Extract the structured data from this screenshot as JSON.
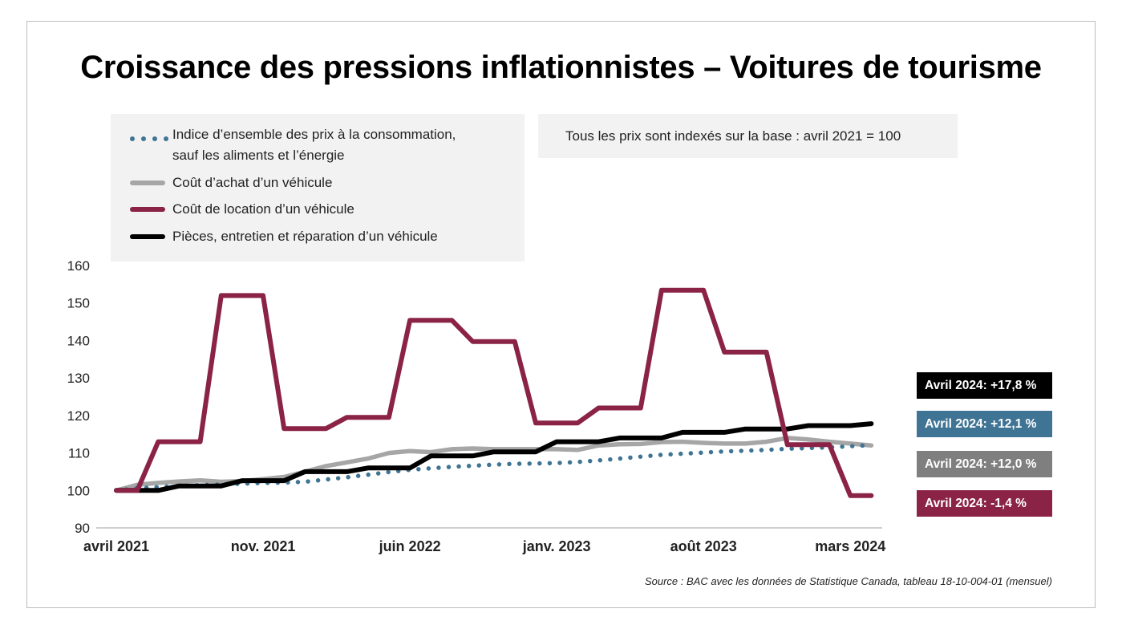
{
  "title": "Croissance des pressions inflationnistes – Voitures de tourisme",
  "note": "Tous les prix sont indexés sur la base : avril 2021 = 100",
  "source": "Source : BAC avec les données de Statistique Canada, tableau 18-10-004-01 (mensuel)",
  "legend": [
    {
      "label_line1": "Indice d’ensemble des prix à la consommation,",
      "label_line2": "sauf les aliments et l’énergie",
      "style": "dotted",
      "color": "#3f7494"
    },
    {
      "label_line1": "Coût d’achat d’un véhicule",
      "style": "solid",
      "color": "#a6a6a6"
    },
    {
      "label_line1": "Coût de location d’un véhicule",
      "style": "solid",
      "color": "#8a2346"
    },
    {
      "label_line1": "Pièces, entretien et réparation d’un véhicule",
      "style": "solid",
      "color": "#000000"
    }
  ],
  "badges": [
    {
      "text": "Avril 2024: +17,8 %",
      "color": "#000000"
    },
    {
      "text": "Avril 2024: +12,1 %",
      "color": "#3f7494"
    },
    {
      "text": "Avril 2024: +12,0 %",
      "color": "#7f7f7f"
    },
    {
      "text": "Avril 2024: -1,4 %",
      "color": "#8a2346"
    }
  ],
  "chart_data": {
    "type": "line",
    "title": "Croissance des pressions inflationnistes – Voitures de tourisme",
    "xlabel": "",
    "ylabel": "",
    "ylim": [
      90,
      160
    ],
    "yticks": [
      90,
      100,
      110,
      120,
      130,
      140,
      150,
      160
    ],
    "x_tick_labels": [
      "avril 2021",
      "nov. 2021",
      "juin 2022",
      "janv. 2023",
      "août 2023",
      "mars 2024"
    ],
    "x_tick_month_index": [
      0,
      7,
      14,
      21,
      28,
      35
    ],
    "grid": false,
    "legend_position": "top-left",
    "x": [
      "2021-04",
      "2021-05",
      "2021-06",
      "2021-07",
      "2021-08",
      "2021-09",
      "2021-10",
      "2021-11",
      "2021-12",
      "2022-01",
      "2022-02",
      "2022-03",
      "2022-04",
      "2022-05",
      "2022-06",
      "2022-07",
      "2022-08",
      "2022-09",
      "2022-10",
      "2022-11",
      "2022-12",
      "2023-01",
      "2023-02",
      "2023-03",
      "2023-04",
      "2023-05",
      "2023-06",
      "2023-07",
      "2023-08",
      "2023-09",
      "2023-10",
      "2023-11",
      "2023-12",
      "2024-01",
      "2024-02",
      "2024-03",
      "2024-04"
    ],
    "series": [
      {
        "name": "Indice d’ensemble des prix à la consommation, sauf les aliments et l’énergie",
        "style": "dotted",
        "color": "#3f7494",
        "values": [
          100,
          100.6,
          100.9,
          101.2,
          101.4,
          101.6,
          101.8,
          102.0,
          102.1,
          102.3,
          102.9,
          103.5,
          104.2,
          104.9,
          105.5,
          105.9,
          106.3,
          106.6,
          106.9,
          107.1,
          107.2,
          107.3,
          107.6,
          108.0,
          108.5,
          109.0,
          109.5,
          109.8,
          110.1,
          110.4,
          110.6,
          110.8,
          111.1,
          111.3,
          111.5,
          111.8,
          112.1
        ]
      },
      {
        "name": "Coût d’achat d’un véhicule",
        "style": "solid",
        "color": "#a6a6a6",
        "values": [
          100,
          101.5,
          102.0,
          102.4,
          102.7,
          102.3,
          102.5,
          103.0,
          103.6,
          105.0,
          106.5,
          107.5,
          108.5,
          110.0,
          110.5,
          110.2,
          111.0,
          111.2,
          111.0,
          111.0,
          111.0,
          111.0,
          110.8,
          112.0,
          112.3,
          112.4,
          112.9,
          113.0,
          112.7,
          112.5,
          112.5,
          113.0,
          114.0,
          113.6,
          113.0,
          112.5,
          112.0
        ]
      },
      {
        "name": "Coût de location d’un véhicule",
        "style": "solid",
        "color": "#8a2346",
        "values": [
          100,
          100,
          113,
          113,
          113,
          152,
          152,
          152,
          116.5,
          116.5,
          116.5,
          119.5,
          119.5,
          119.5,
          145.4,
          145.4,
          145.4,
          139.7,
          139.7,
          139.7,
          118,
          118,
          118,
          122,
          122,
          122,
          153.4,
          153.4,
          153.4,
          136.9,
          136.9,
          136.9,
          112.2,
          112.2,
          112.2,
          98.6,
          98.6
        ]
      },
      {
        "name": "Pièces, entretien et réparation d’un véhicule",
        "style": "solid",
        "color": "#000000",
        "values": [
          100,
          100,
          100,
          101.2,
          101.2,
          101.2,
          102.6,
          102.6,
          102.6,
          105,
          105,
          105,
          106,
          106,
          106,
          109.2,
          109.2,
          109.2,
          110.3,
          110.3,
          110.3,
          113,
          113,
          113,
          114,
          114,
          114,
          115.5,
          115.5,
          115.5,
          116.4,
          116.4,
          116.4,
          117.3,
          117.3,
          117.3,
          117.8
        ]
      }
    ]
  }
}
